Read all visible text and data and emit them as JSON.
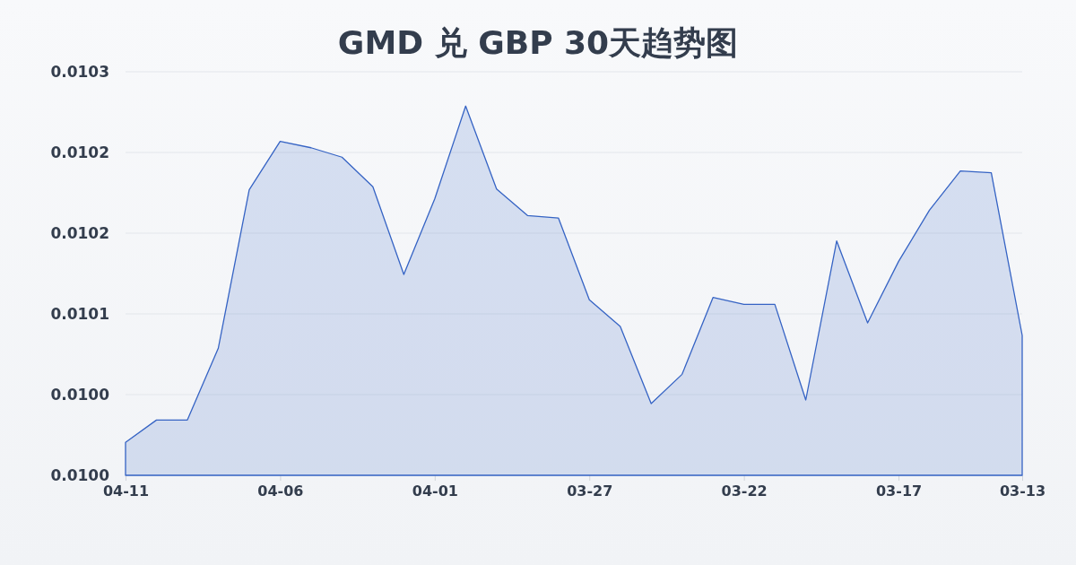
{
  "chart_data": {
    "type": "area",
    "title": "GMD 兑 GBP 30天趋势图",
    "categories": [
      "04-11",
      null,
      null,
      null,
      null,
      "04-06",
      null,
      null,
      null,
      null,
      "04-01",
      null,
      null,
      null,
      null,
      "03-27",
      null,
      null,
      null,
      null,
      "03-22",
      null,
      null,
      null,
      null,
      "03-17",
      null,
      null,
      null,
      "03-13"
    ],
    "values": [
      0.0100045,
      0.0100211,
      0.0100211,
      0.0100745,
      0.0101922,
      0.0102282,
      0.0102235,
      0.0102165,
      0.0101945,
      0.0101293,
      0.0101855,
      0.0102545,
      0.0101929,
      0.0101731,
      0.0101713,
      0.0101105,
      0.0100907,
      0.0100333,
      0.0100551,
      0.0101122,
      0.0101071,
      0.0101071,
      0.010036,
      0.0101542,
      0.0100933,
      0.0101389,
      0.0101771,
      0.0102062,
      0.0102049,
      0.010084
    ],
    "color": "#3563c4",
    "ylim": [
      0.00998,
      0.01028
    ],
    "yticks": [
      {
        "value": 0.00998,
        "label": "0.0100"
      },
      {
        "value": 0.01004,
        "label": "0.0100"
      },
      {
        "value": 0.0101,
        "label": "0.0101"
      },
      {
        "value": 0.01016,
        "label": "0.0102"
      },
      {
        "value": 0.01022,
        "label": "0.0102"
      },
      {
        "value": 0.01028,
        "label": "0.0103"
      }
    ],
    "grid": "y"
  }
}
